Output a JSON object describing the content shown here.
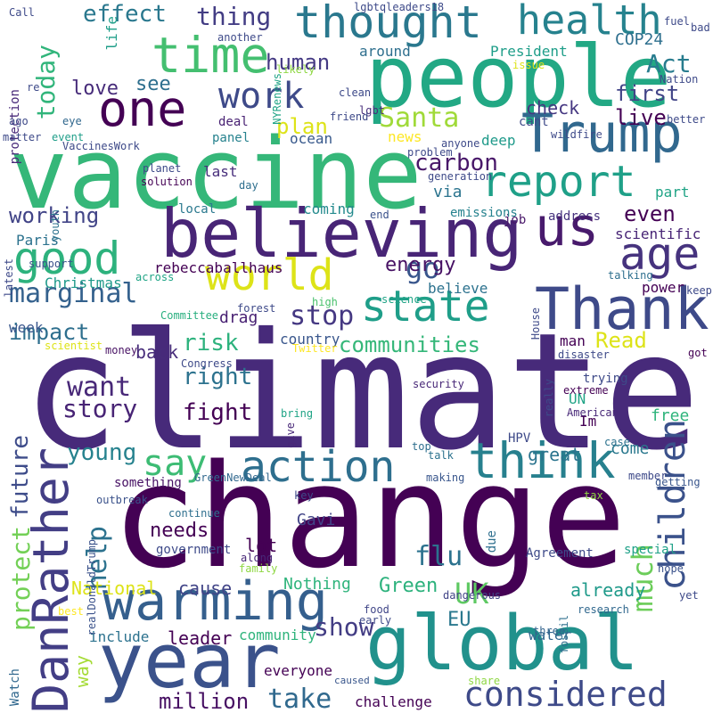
{
  "words": [
    "climate",
    "change",
    "vaccine",
    "people",
    "year",
    "global",
    "believing",
    "Trump",
    "Thank",
    "warming",
    "DanRather",
    "think",
    "action",
    "one",
    "time",
    "thought",
    "health",
    "us",
    "report",
    "world",
    "state",
    "good",
    "age",
    "children",
    "considered",
    "much",
    "say",
    "work",
    "marginal",
    "help",
    "today",
    "go",
    "carbon",
    "Santa",
    "energy",
    "stop",
    "future",
    "impact",
    "communities",
    "want",
    "story",
    "fight",
    "risk",
    "right",
    "flu",
    "UK",
    "protect",
    "young",
    "cause",
    "National",
    "Nothing",
    "Green",
    "already",
    "needs",
    "lot",
    "Gavi",
    "EU",
    "leader",
    "show",
    "take",
    "million",
    "everyone",
    "community",
    "way",
    "include",
    "water",
    "effect",
    "thing",
    "human",
    "Act",
    "COP24",
    "love",
    "see",
    "first",
    "live",
    "check",
    "plan",
    "news",
    "deep",
    "via",
    "part",
    "even",
    "scientific",
    "working",
    "Paris",
    "rebeccaballhaus",
    "believe",
    "Christmas",
    "back",
    "country",
    "Read",
    "week",
    "come",
    "free",
    "UN",
    "Im",
    "great",
    "man",
    "power",
    "address",
    "job",
    "emissions",
    "coming",
    "local",
    "last",
    "panel",
    "ocean",
    "deal",
    "life",
    "protection",
    "Watch",
    "challenge",
    "caused",
    "share",
    "research",
    "three",
    "fossil",
    "early",
    "food",
    "dangerous",
    "Agreement",
    "special",
    "hope",
    "yet",
    "tax",
    "getting",
    "member",
    "case",
    "American",
    "extreme",
    "trying",
    "disaster",
    "got",
    "keep",
    "talking",
    "HPV",
    "really",
    "security",
    "top",
    "talk",
    "making",
    "key",
    "due",
    "something",
    "outbreak",
    "GreenNewDeal",
    "realDonaldTrump",
    "continue",
    "government",
    "along",
    "family",
    "best",
    "give",
    "bring",
    "Twitter",
    "Congress",
    "money",
    "scientist",
    "high",
    "science",
    "House",
    "forest",
    "drag",
    "Committee",
    "across",
    "latest",
    "support",
    "youth",
    "matter",
    "ago",
    "eye",
    "event",
    "VaccinesWork",
    "planet",
    "solution",
    "day",
    "end",
    "generation",
    "problem",
    "anyone",
    "lgbt",
    "friend",
    "clean",
    "NYRenews",
    "re",
    "likely",
    "around",
    "President",
    "issue",
    "cant",
    "wildfire",
    "better",
    "Nation",
    "fuel",
    "bad",
    "Call",
    "another",
    "lgbtqleaders18"
  ]
}
